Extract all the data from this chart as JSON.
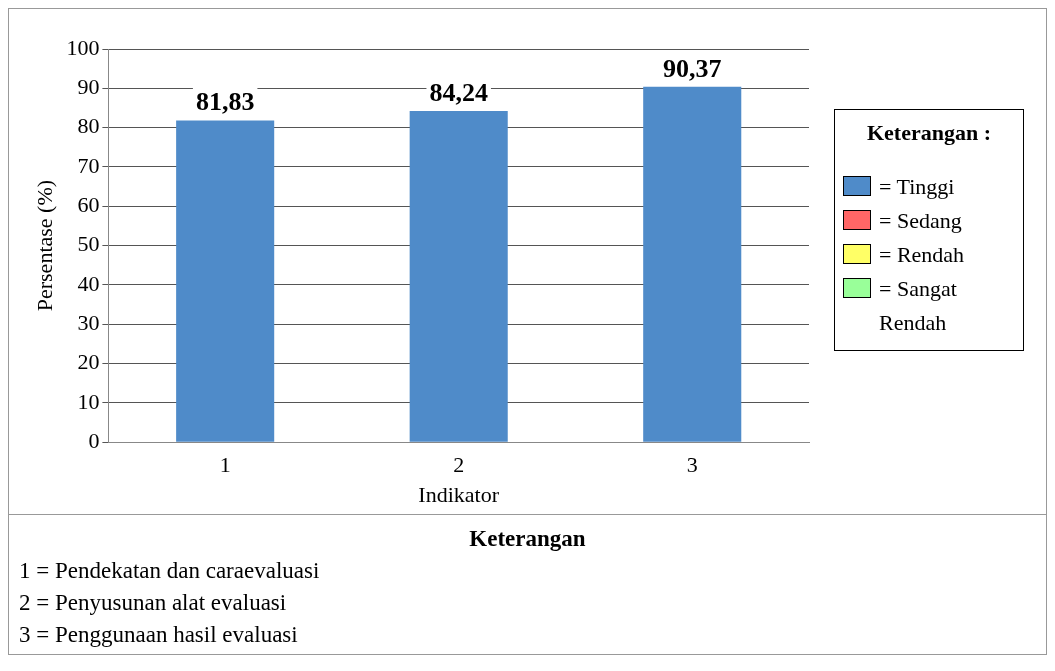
{
  "chart_data": {
    "type": "bar",
    "xlabel": "Indikator",
    "ylabel": "Persentase (%)",
    "legend_title": "Keterangan :",
    "categories": [
      "1",
      "2",
      "3"
    ],
    "series": [
      {
        "name": "= Tinggi",
        "color": "#4f8bc9",
        "values": [
          81.83,
          84.24,
          90.37
        ],
        "value_labels": [
          "81,83",
          "84,24",
          "90,37"
        ]
      },
      {
        "name": "= Sedang",
        "color": "#ff6666",
        "values": [
          null,
          null,
          null
        ]
      },
      {
        "name": "= Rendah",
        "color": "#ffff66",
        "values": [
          null,
          null,
          null
        ]
      },
      {
        "name": "= Sangat Rendah",
        "color": "#99ff99",
        "values": [
          null,
          null,
          null
        ]
      }
    ],
    "ylim": [
      0,
      100
    ],
    "yticks": [
      0,
      10,
      20,
      30,
      40,
      50,
      60,
      70,
      80,
      90,
      100
    ],
    "grid": "y",
    "legend": "right",
    "annotations": [
      "Keterangan",
      "1 = Pendekatan dan caraevaluasi",
      "2 = Penyusunan alat evaluasi",
      "3 = Penggunaan hasil evaluasi"
    ]
  }
}
